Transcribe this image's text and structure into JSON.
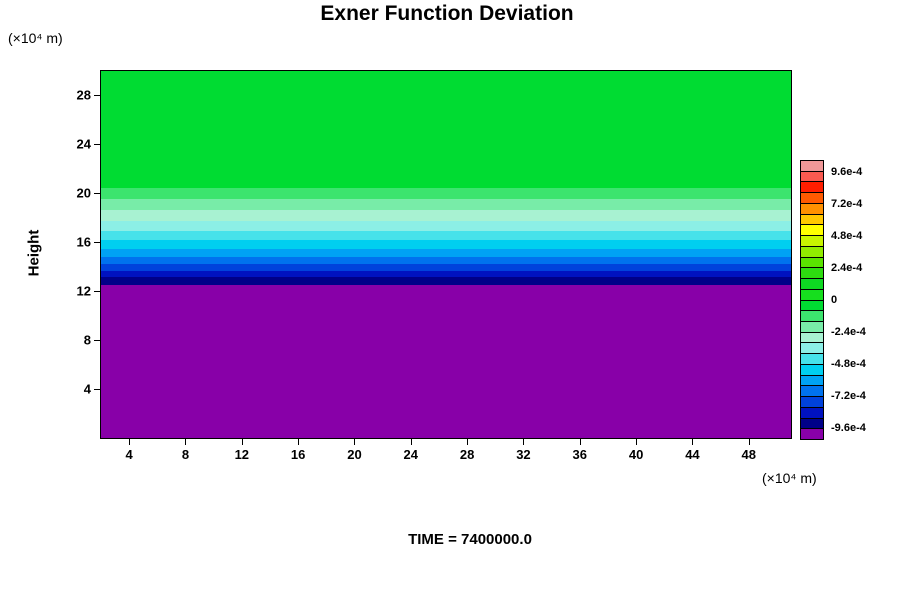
{
  "chart_data": {
    "type": "heatmap",
    "title": "Exner Function Deviation",
    "time": "TIME = 7400000.0",
    "ylabel": "Height",
    "y_unit": "(×10⁴ m)",
    "xlabel": "(×10⁴ m)",
    "x_range": [
      2,
      51
    ],
    "y_range": [
      0,
      30
    ],
    "x_ticks": [
      4,
      8,
      12,
      16,
      20,
      24,
      28,
      32,
      36,
      40,
      44,
      48
    ],
    "y_ticks": [
      4,
      8,
      12,
      16,
      20,
      24,
      28
    ],
    "grid": false,
    "legend_position": "right-colorbar",
    "description": "Horizontally uniform filled-contour field: value near 0 (green) above height 20×10⁴ m, smoothly decreasing through cyan and blue between heights 20 and 12.5, and below -9.6e-4 (purple) beneath height 12.5×10⁴ m.",
    "bands": [
      {
        "y_from": 20.4,
        "y_to": 30.0,
        "value_approx": "-0.4e-4",
        "color": "#00DC32"
      },
      {
        "y_from": 19.5,
        "y_to": 20.4,
        "value_approx": "-1.2e-4",
        "color": "#3CE46E"
      },
      {
        "y_from": 18.6,
        "y_to": 19.5,
        "value_approx": "-2.0e-4",
        "color": "#78ECA8"
      },
      {
        "y_from": 17.7,
        "y_to": 18.6,
        "value_approx": "-2.8e-4",
        "color": "#A8F2D2"
      },
      {
        "y_from": 16.9,
        "y_to": 17.7,
        "value_approx": "-3.6e-4",
        "color": "#8CEFE6"
      },
      {
        "y_from": 16.15,
        "y_to": 16.9,
        "value_approx": "-4.4e-4",
        "color": "#46E2EA"
      },
      {
        "y_from": 15.45,
        "y_to": 16.15,
        "value_approx": "-5.2e-4",
        "color": "#00CFF0"
      },
      {
        "y_from": 14.8,
        "y_to": 15.45,
        "value_approx": "-6.0e-4",
        "color": "#00A2F4"
      },
      {
        "y_from": 14.2,
        "y_to": 14.8,
        "value_approx": "-6.8e-4",
        "color": "#0072EE"
      },
      {
        "y_from": 13.65,
        "y_to": 14.2,
        "value_approx": "-7.6e-4",
        "color": "#0042DC"
      },
      {
        "y_from": 13.15,
        "y_to": 13.65,
        "value_approx": "-8.4e-4",
        "color": "#0012C0"
      },
      {
        "y_from": 12.5,
        "y_to": 13.15,
        "value_approx": "-9.2e-4",
        "color": "#000088"
      },
      {
        "y_from": 0.0,
        "y_to": 12.5,
        "value_approx": "< -9.6e-4",
        "color": "#8800A8"
      }
    ],
    "colorbar": {
      "segments": [
        "#F09898",
        "#FA5A50",
        "#FF1E00",
        "#FF5A00",
        "#FF9100",
        "#FFC800",
        "#FFFF00",
        "#C8F500",
        "#91EC00",
        "#5AE300",
        "#2EDC10",
        "#0ED922",
        "#16DE1E",
        "#00DC32",
        "#3CE46E",
        "#78ECA8",
        "#A8F2D2",
        "#8CEFE6",
        "#46E2EA",
        "#00CFF0",
        "#00A2F4",
        "#0072EE",
        "#0042DC",
        "#0012C0",
        "#000088",
        "#8800A8"
      ],
      "labels": [
        {
          "text": "9.6e-4",
          "boundary": 1
        },
        {
          "text": "7.2e-4",
          "boundary": 4
        },
        {
          "text": "4.8e-4",
          "boundary": 7
        },
        {
          "text": "2.4e-4",
          "boundary": 10
        },
        {
          "text": "0",
          "boundary": 13
        },
        {
          "text": "-2.4e-4",
          "boundary": 16
        },
        {
          "text": "-4.8e-4",
          "boundary": 19
        },
        {
          "text": "-7.2e-4",
          "boundary": 22
        },
        {
          "text": "-9.6e-4",
          "boundary": 25
        }
      ]
    }
  }
}
